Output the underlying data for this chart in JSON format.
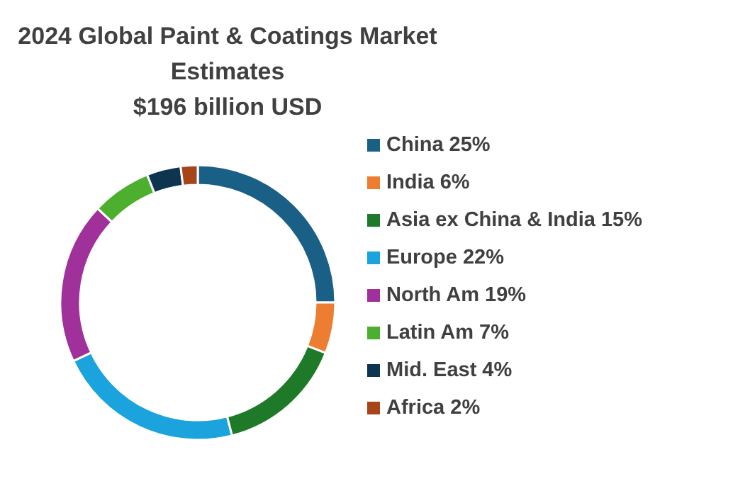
{
  "chart_data": {
    "type": "donut",
    "title": "2024 Global Paint & Coatings Market Estimates",
    "subtitle": "$196 billion USD",
    "categories": [
      "China 25%",
      "India 6%",
      "Asia ex China & India 15%",
      "Europe 22%",
      "North Am 19%",
      "Latin Am 7%",
      "Mid. East 4%",
      "Africa 2%"
    ],
    "values": [
      25,
      6,
      15,
      22,
      19,
      7,
      4,
      2
    ],
    "colors": [
      "#1a5f85",
      "#ed7d31",
      "#1e7a28",
      "#1aa3dc",
      "#a0309a",
      "#4caf2e",
      "#0d3550",
      "#a8441a"
    ],
    "legend": "right"
  }
}
